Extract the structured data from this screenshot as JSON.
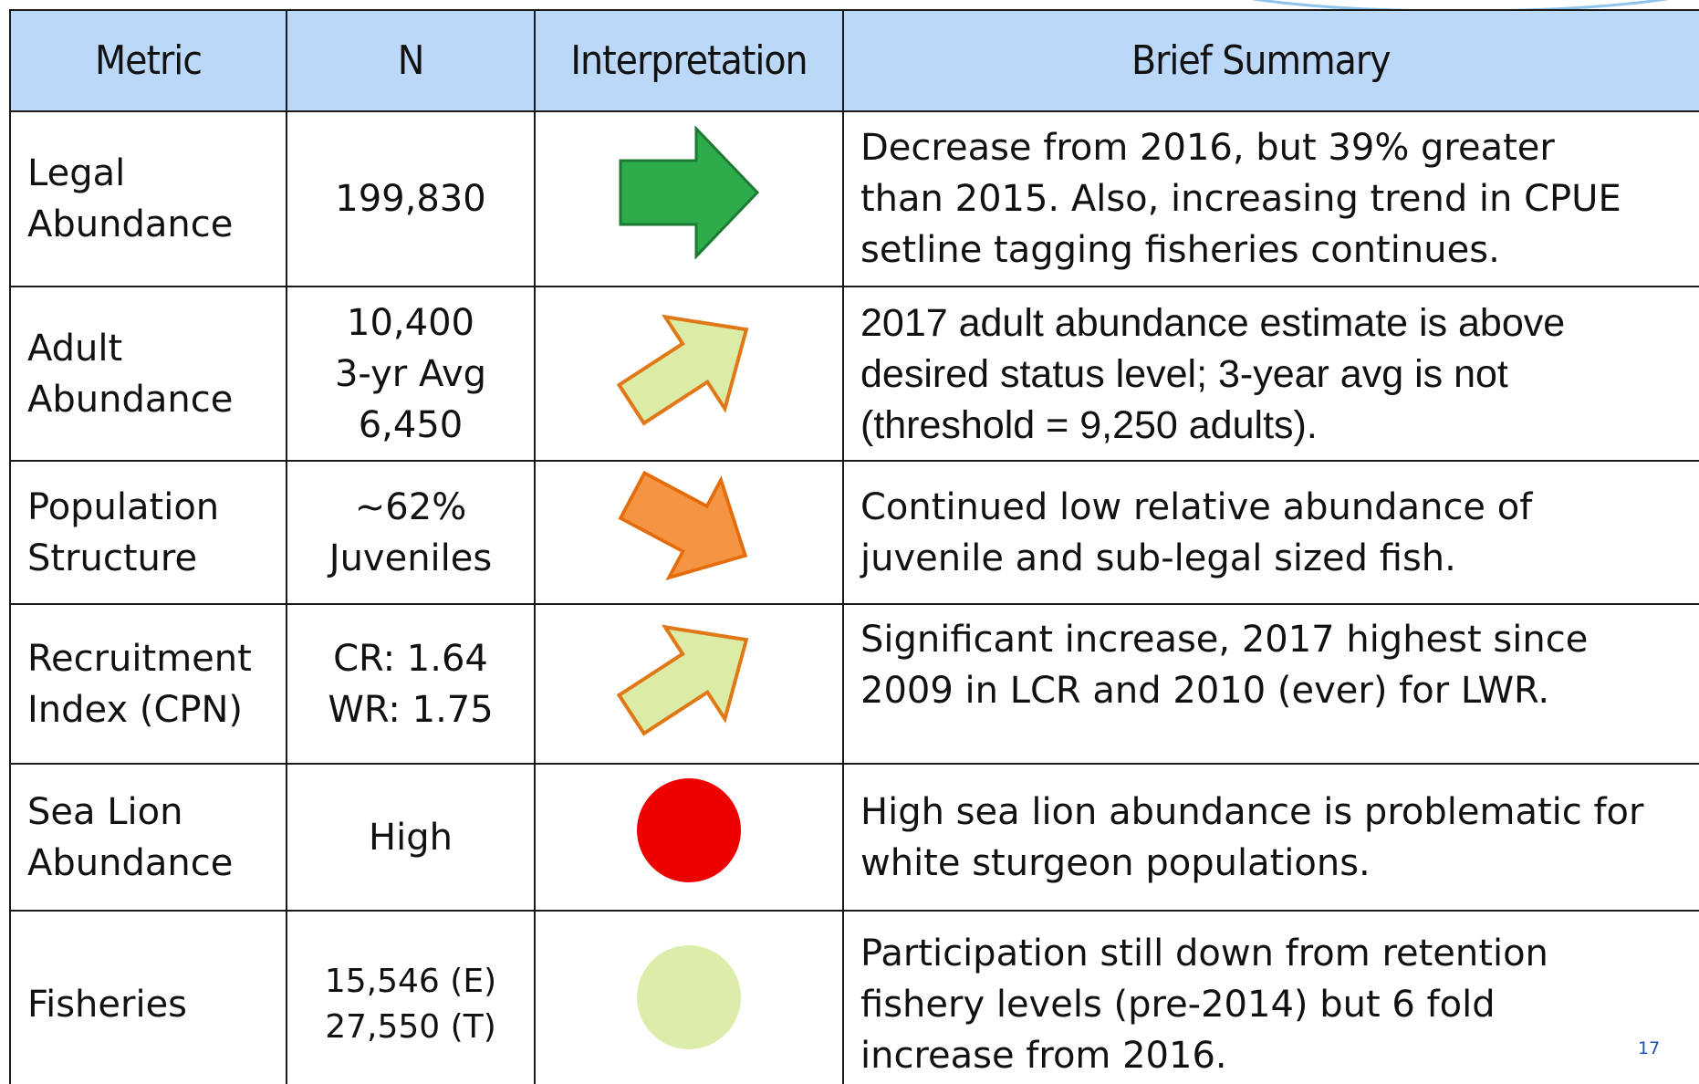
{
  "table": {
    "header": [
      "Metric",
      "N",
      "Interpretation",
      "Brief Summary"
    ],
    "rows": [
      {
        "metric": [
          "Legal",
          "Abundance"
        ],
        "n": [
          "199,830"
        ],
        "summary": [
          "Decrease from 2016, but 39% greater",
          "than 2015. Also, increasing trend in CPUE",
          "setline tagging fisheries continues."
        ]
      },
      {
        "metric": [
          "Adult",
          "Abundance"
        ],
        "n": [
          "10,400",
          "3-yr Avg",
          "6,450"
        ],
        "summary": [
          "2017 adult abundance estimate is above",
          "desired status level; 3-year avg is not",
          "(threshold = 9,250 adults)."
        ]
      },
      {
        "metric": [
          "Population",
          "Structure"
        ],
        "n": [
          "~62%",
          "Juveniles"
        ],
        "summary": [
          "Continued low relative abundance of",
          "juvenile and sub-legal sized fish."
        ]
      },
      {
        "metric": [
          "Recruitment",
          "Index (CPN)"
        ],
        "n": [
          "CR: 1.64",
          "WR: 1.75"
        ],
        "summary": [
          "Significant increase, 2017 highest since",
          "2009 in LCR and 2010 (ever) for LWR."
        ]
      },
      {
        "metric": [
          "Sea Lion",
          "Abundance"
        ],
        "n": [
          "High"
        ],
        "summary": [
          "High sea lion abundance is problematic for",
          "white sturgeon populations."
        ]
      },
      {
        "metric": [
          "Fisheries"
        ],
        "n": [
          "15,546 (E)",
          "27,550 (T)"
        ],
        "summary": [
          "Participation still down from retention",
          "fishery levels (pre-2014) but 6 fold",
          "increase from 2016."
        ]
      }
    ]
  },
  "page_number": "17"
}
